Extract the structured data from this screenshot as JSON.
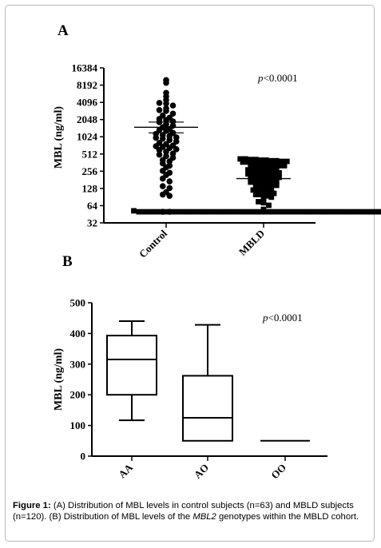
{
  "panels": {
    "a": {
      "letter": "A",
      "ylabel": "MBL (ng/ml)",
      "yticks": [
        "16384",
        "8192",
        "4096",
        "2048",
        "1024",
        "512",
        "256",
        "128",
        "64",
        "32"
      ],
      "pvalue_symbol": "p",
      "pvalue_rest": "<0.0001"
    },
    "b": {
      "letter": "B",
      "ylabel": "MBL (ng/ml)",
      "yticks": [
        "500",
        "400",
        "300",
        "200",
        "100",
        "0"
      ],
      "pvalue_symbol": "p",
      "pvalue_rest": "<0.0001"
    }
  },
  "caption": {
    "label": "Figure 1:",
    "text_1": " (A) Distribution of MBL levels in control subjects (n=63) and MBLD subjects (n=120). (B) Distribution of MBL levels of the ",
    "gene": "MBL2",
    "text_2": " genotypes within the MBLD cohort."
  },
  "chart_data": [
    {
      "type": "scatter",
      "title": "A",
      "xlabel": "",
      "ylabel": "MBL (ng/ml)",
      "y_scale": "log2",
      "ylim": [
        32,
        16384
      ],
      "categories": [
        "Control",
        "MBLD"
      ],
      "annotation": "p<0.0001",
      "series": [
        {
          "name": "Control",
          "marker": "circle",
          "mean": 1500,
          "sem": [
            1200,
            1850
          ],
          "values": [
            10000,
            9000,
            6000,
            5200,
            4500,
            4000,
            3900,
            3600,
            3200,
            3000,
            2900,
            2600,
            2400,
            2200,
            2100,
            2000,
            1900,
            1850,
            1700,
            1600,
            1500,
            1400,
            1350,
            1300,
            1200,
            1150,
            1100,
            1050,
            1000,
            980,
            950,
            900,
            850,
            800,
            760,
            720,
            700,
            680,
            650,
            620,
            600,
            560,
            520,
            500,
            470,
            440,
            400,
            380,
            350,
            320,
            300,
            260,
            240,
            220,
            190,
            170,
            140,
            130,
            110,
            100,
            95,
            50,
            50
          ]
        },
        {
          "name": "MBLD",
          "marker": "square",
          "mean": 190,
          "sem": [
            175,
            205
          ],
          "values": [
            420,
            420,
            410,
            410,
            400,
            400,
            390,
            390,
            380,
            380,
            370,
            370,
            360,
            350,
            350,
            340,
            330,
            320,
            320,
            310,
            300,
            300,
            290,
            280,
            280,
            270,
            260,
            260,
            250,
            250,
            240,
            240,
            230,
            230,
            220,
            220,
            210,
            200,
            200,
            195,
            190,
            185,
            180,
            175,
            170,
            165,
            160,
            160,
            150,
            150,
            145,
            140,
            135,
            130,
            125,
            120,
            118,
            115,
            110,
            105,
            100,
            100,
            95,
            90,
            85,
            75,
            72,
            65,
            55,
            52,
            50,
            50,
            50,
            50,
            50,
            50,
            50,
            50,
            50,
            50,
            50,
            50,
            50,
            50,
            50,
            50,
            50,
            50,
            50,
            50,
            50,
            50,
            50,
            50,
            50,
            50,
            50,
            50,
            50,
            50,
            50,
            50,
            50,
            50,
            50,
            50,
            50,
            50,
            50,
            50,
            50,
            50,
            50,
            50,
            50,
            50,
            50,
            50,
            50,
            50
          ]
        }
      ]
    },
    {
      "type": "box",
      "title": "B",
      "xlabel": "",
      "ylabel": "MBL (ng/ml)",
      "ylim": [
        0,
        500
      ],
      "categories": [
        "AA",
        "AO",
        "OO"
      ],
      "annotation": "p<0.0001",
      "boxes": [
        {
          "name": "AA",
          "min": 117,
          "q1": 200,
          "median": 315,
          "q3": 393,
          "max": 440
        },
        {
          "name": "AO",
          "min": 50,
          "q1": 50,
          "median": 125,
          "q3": 262,
          "max": 428
        },
        {
          "name": "OO",
          "min": 50,
          "q1": 50,
          "median": 50,
          "q3": 50,
          "max": 50
        }
      ]
    }
  ]
}
